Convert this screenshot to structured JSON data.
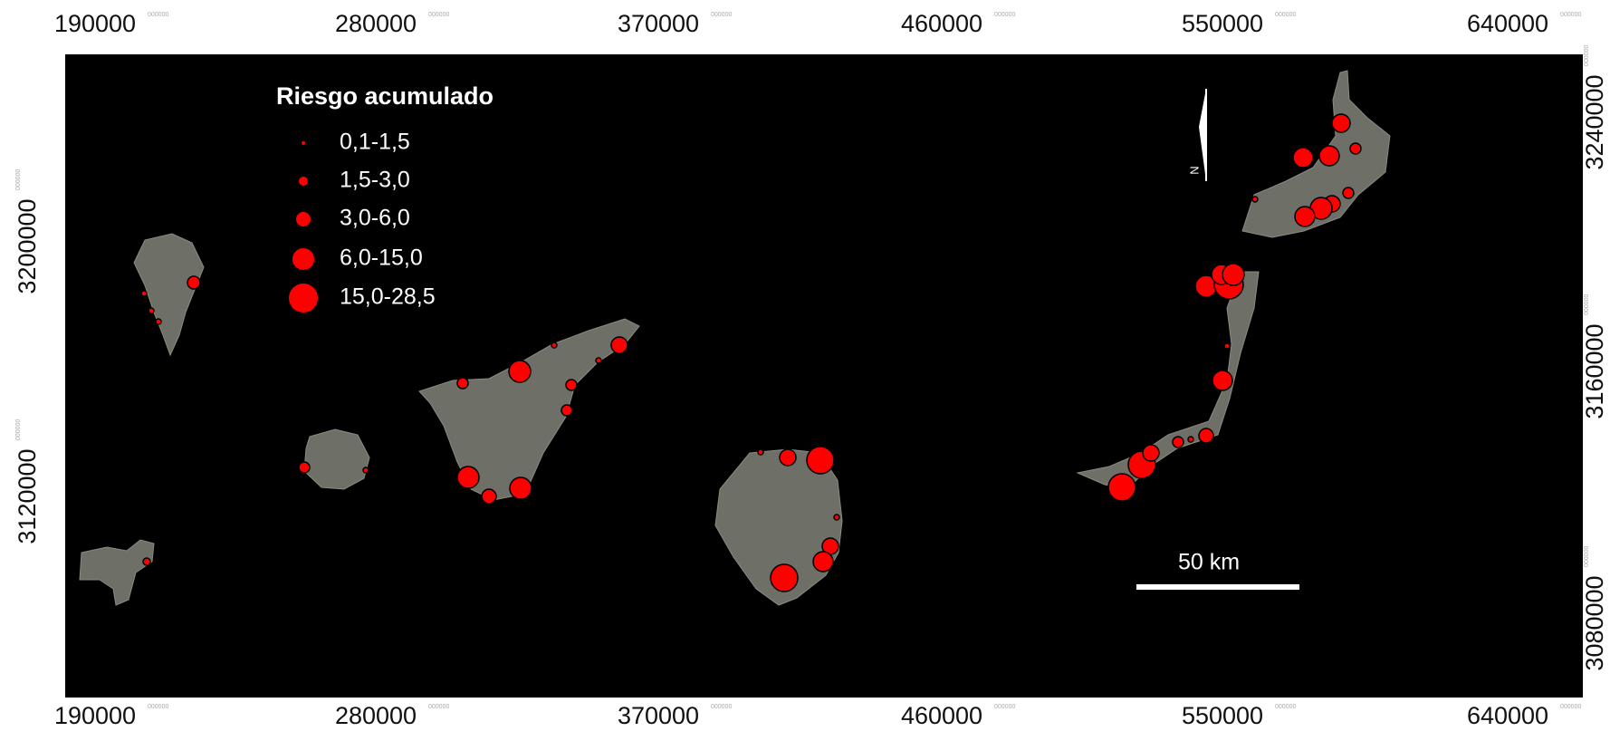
{
  "axes": {
    "x_labels": [
      "190000",
      "280000",
      "370000",
      "460000",
      "550000",
      "640000"
    ],
    "y_labels_left": [
      "3200000",
      "3120000"
    ],
    "y_labels_right": [
      "3240000",
      "3160000",
      "3080000"
    ],
    "label_suffix": "000000"
  },
  "legend": {
    "title": "Riesgo acumulado",
    "entries": [
      "0,1-1,5",
      "1,5-3,0",
      "3,0-6,0",
      "6,0-15,0",
      "15,0-28,5"
    ]
  },
  "scale_bar": "50 km",
  "north": "N"
}
